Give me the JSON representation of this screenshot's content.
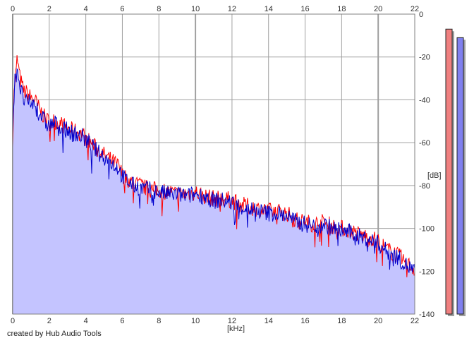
{
  "chart_data": {
    "type": "area",
    "title": "",
    "xlabel": "[kHz]",
    "ylabel": "[dB]",
    "xlim": [
      0,
      22
    ],
    "ylim": [
      -140,
      0
    ],
    "x_ticks": [
      0,
      2,
      4,
      6,
      8,
      10,
      12,
      14,
      16,
      18,
      20,
      22
    ],
    "y_ticks": [
      0,
      -20,
      -40,
      -60,
      -80,
      -100,
      -120,
      -140
    ],
    "x_tick_labels": [
      "0",
      "2",
      "4",
      "6",
      "8",
      "10",
      "12",
      "14",
      "16",
      "18",
      "20",
      "22"
    ],
    "y_tick_labels": [
      "0",
      "-20",
      "-40",
      "-60",
      "-80",
      "-100",
      "-120",
      "-140"
    ],
    "grid": true,
    "series": [
      {
        "color": "#ff0000",
        "x": [
          0,
          0.1,
          0.2,
          0.25,
          0.3,
          0.4,
          0.5,
          0.6,
          0.8,
          1.0,
          1.2,
          1.5,
          1.8,
          2.0,
          2.3,
          2.6,
          2.9,
          3.2,
          3.5,
          3.8,
          4.0,
          4.3,
          4.6,
          4.9,
          5.2,
          5.5,
          5.8,
          6.0,
          6.3,
          6.6,
          7.0,
          7.5,
          8.0,
          8.5,
          9.0,
          9.5,
          10.0,
          10.5,
          11.0,
          11.5,
          12.0,
          12.5,
          13.0,
          13.5,
          14.0,
          14.5,
          15.0,
          15.5,
          16.0,
          16.5,
          17.0,
          17.5,
          18.0,
          18.5,
          19.0,
          19.5,
          20.0,
          20.5,
          21.0,
          21.5,
          22.0
        ],
        "values": [
          -58,
          -32,
          -26,
          -20,
          -24,
          -30,
          -33,
          -36,
          -37,
          -39,
          -40,
          -45,
          -49,
          -50,
          -50,
          -51,
          -53,
          -54,
          -55,
          -56,
          -58,
          -60,
          -63,
          -65,
          -67,
          -69,
          -71,
          -75,
          -77,
          -79,
          -80,
          -82,
          -82,
          -83,
          -84,
          -84,
          -83,
          -85,
          -86,
          -86,
          -87,
          -89,
          -90,
          -91,
          -92,
          -92,
          -93,
          -96,
          -97,
          -98,
          -97,
          -99,
          -100,
          -101,
          -103,
          -104,
          -106,
          -110,
          -112,
          -116,
          -119
        ]
      },
      {
        "color": "#0000cc",
        "x": [
          0,
          0.1,
          0.2,
          0.25,
          0.3,
          0.4,
          0.5,
          0.6,
          0.8,
          1.0,
          1.2,
          1.5,
          1.8,
          2.0,
          2.3,
          2.6,
          2.9,
          3.2,
          3.5,
          3.8,
          4.0,
          4.3,
          4.6,
          4.9,
          5.2,
          5.5,
          5.8,
          6.0,
          6.3,
          6.6,
          7.0,
          7.5,
          8.0,
          8.5,
          9.0,
          9.5,
          10.0,
          10.5,
          11.0,
          11.5,
          12.0,
          12.5,
          13.0,
          13.5,
          14.0,
          14.5,
          15.0,
          15.5,
          16.0,
          16.5,
          17.0,
          17.5,
          18.0,
          18.5,
          19.0,
          19.5,
          20.0,
          20.5,
          21.0,
          21.5,
          22.0
        ],
        "values": [
          -55,
          -32,
          -28,
          -24,
          -27,
          -34,
          -37,
          -40,
          -42,
          -41,
          -43,
          -46,
          -51,
          -52,
          -51,
          -52,
          -54,
          -55,
          -56,
          -57,
          -59,
          -61,
          -64,
          -66,
          -68,
          -70,
          -72,
          -76,
          -78,
          -80,
          -81,
          -82,
          -83,
          -84,
          -84,
          -85,
          -84,
          -85,
          -87,
          -87,
          -88,
          -90,
          -91,
          -92,
          -93,
          -93,
          -94,
          -97,
          -98,
          -99,
          -98,
          -100,
          -101,
          -102,
          -104,
          -105,
          -107,
          -111,
          -113,
          -117,
          -120
        ]
      }
    ],
    "level_meters": [
      {
        "color": "#f08080",
        "level_db": -7
      },
      {
        "color": "#8080ee",
        "level_db": -11
      }
    ],
    "fill_color": "#c4c4ff",
    "grid_color": "#a0a0a0"
  },
  "footer": {
    "credit": "created by Hub Audio Tools"
  }
}
